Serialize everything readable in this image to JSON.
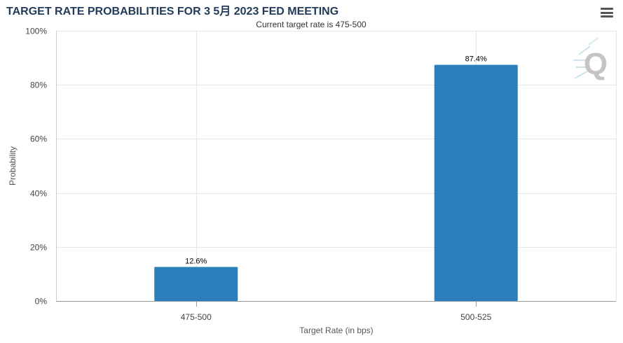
{
  "header": {
    "title": "TARGET RATE PROBABILITIES FOR 3 5月 2023 FED MEETING",
    "menu_icon": "hamburger-menu-icon"
  },
  "watermark": {
    "text": "Q",
    "icon": "quikstrike-logo-icon"
  },
  "chart_data": {
    "type": "bar",
    "title": "TARGET RATE PROBABILITIES FOR 3 5月 2023 FED MEETING",
    "subtitle": "Current target rate is 475-500",
    "xlabel": "Target Rate (in bps)",
    "ylabel": "Probability",
    "categories": [
      "475-500",
      "500-525"
    ],
    "values": [
      12.6,
      87.4
    ],
    "data_labels": [
      "12.6%",
      "87.4%"
    ],
    "ylim": [
      0,
      100
    ],
    "yticks": [
      0,
      20,
      40,
      60,
      80,
      100
    ],
    "ytick_labels": [
      "0%",
      "20%",
      "40%",
      "60%",
      "80%",
      "100%"
    ],
    "grid": true,
    "bar_color": "#2b7fba",
    "grid_color": "#e6e6e6"
  }
}
